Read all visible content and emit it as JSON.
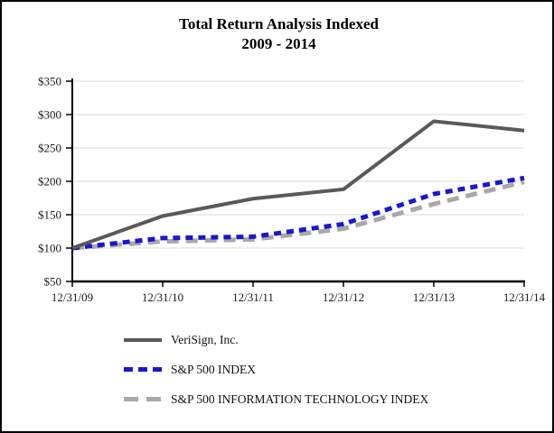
{
  "title": {
    "line1": "Total Return Analysis Indexed",
    "line2": "2009 - 2014"
  },
  "chart_data": {
    "type": "line",
    "title": "Total Return Analysis Indexed 2009 - 2014",
    "x_labels": [
      "12/31/09",
      "12/31/10",
      "12/31/11",
      "12/31/12",
      "12/31/13",
      "12/31/14"
    ],
    "y_tick_labels": [
      "$350",
      "$300",
      "$250",
      "$200",
      "$150",
      "$100",
      "$50"
    ],
    "ylim": [
      50,
      350
    ],
    "y_tick_step": 50,
    "grid": true,
    "legend_position": "bottom-left",
    "colors": {
      "axis": "#000000",
      "gridline": "#d9d9d9",
      "verisign_line": "#595959",
      "sp500_line": "#1818cc",
      "sp500_it_line": "#a8a8a8"
    },
    "series": [
      {
        "name": "VeriSign, Inc.",
        "values": [
          100,
          148,
          174,
          188,
          290,
          276
        ],
        "color": "#595959",
        "style": "solid"
      },
      {
        "name": "S&P 500 INDEX",
        "values": [
          100,
          115,
          117,
          136,
          181,
          205
        ],
        "color": "#1818cc",
        "style": "dashed-short"
      },
      {
        "name": "S&P 500 INFORMATION TECHNOLOGY INDEX",
        "values": [
          100,
          110,
          113,
          129,
          166,
          199
        ],
        "color": "#a8a8a8",
        "style": "dashed-long"
      }
    ]
  }
}
